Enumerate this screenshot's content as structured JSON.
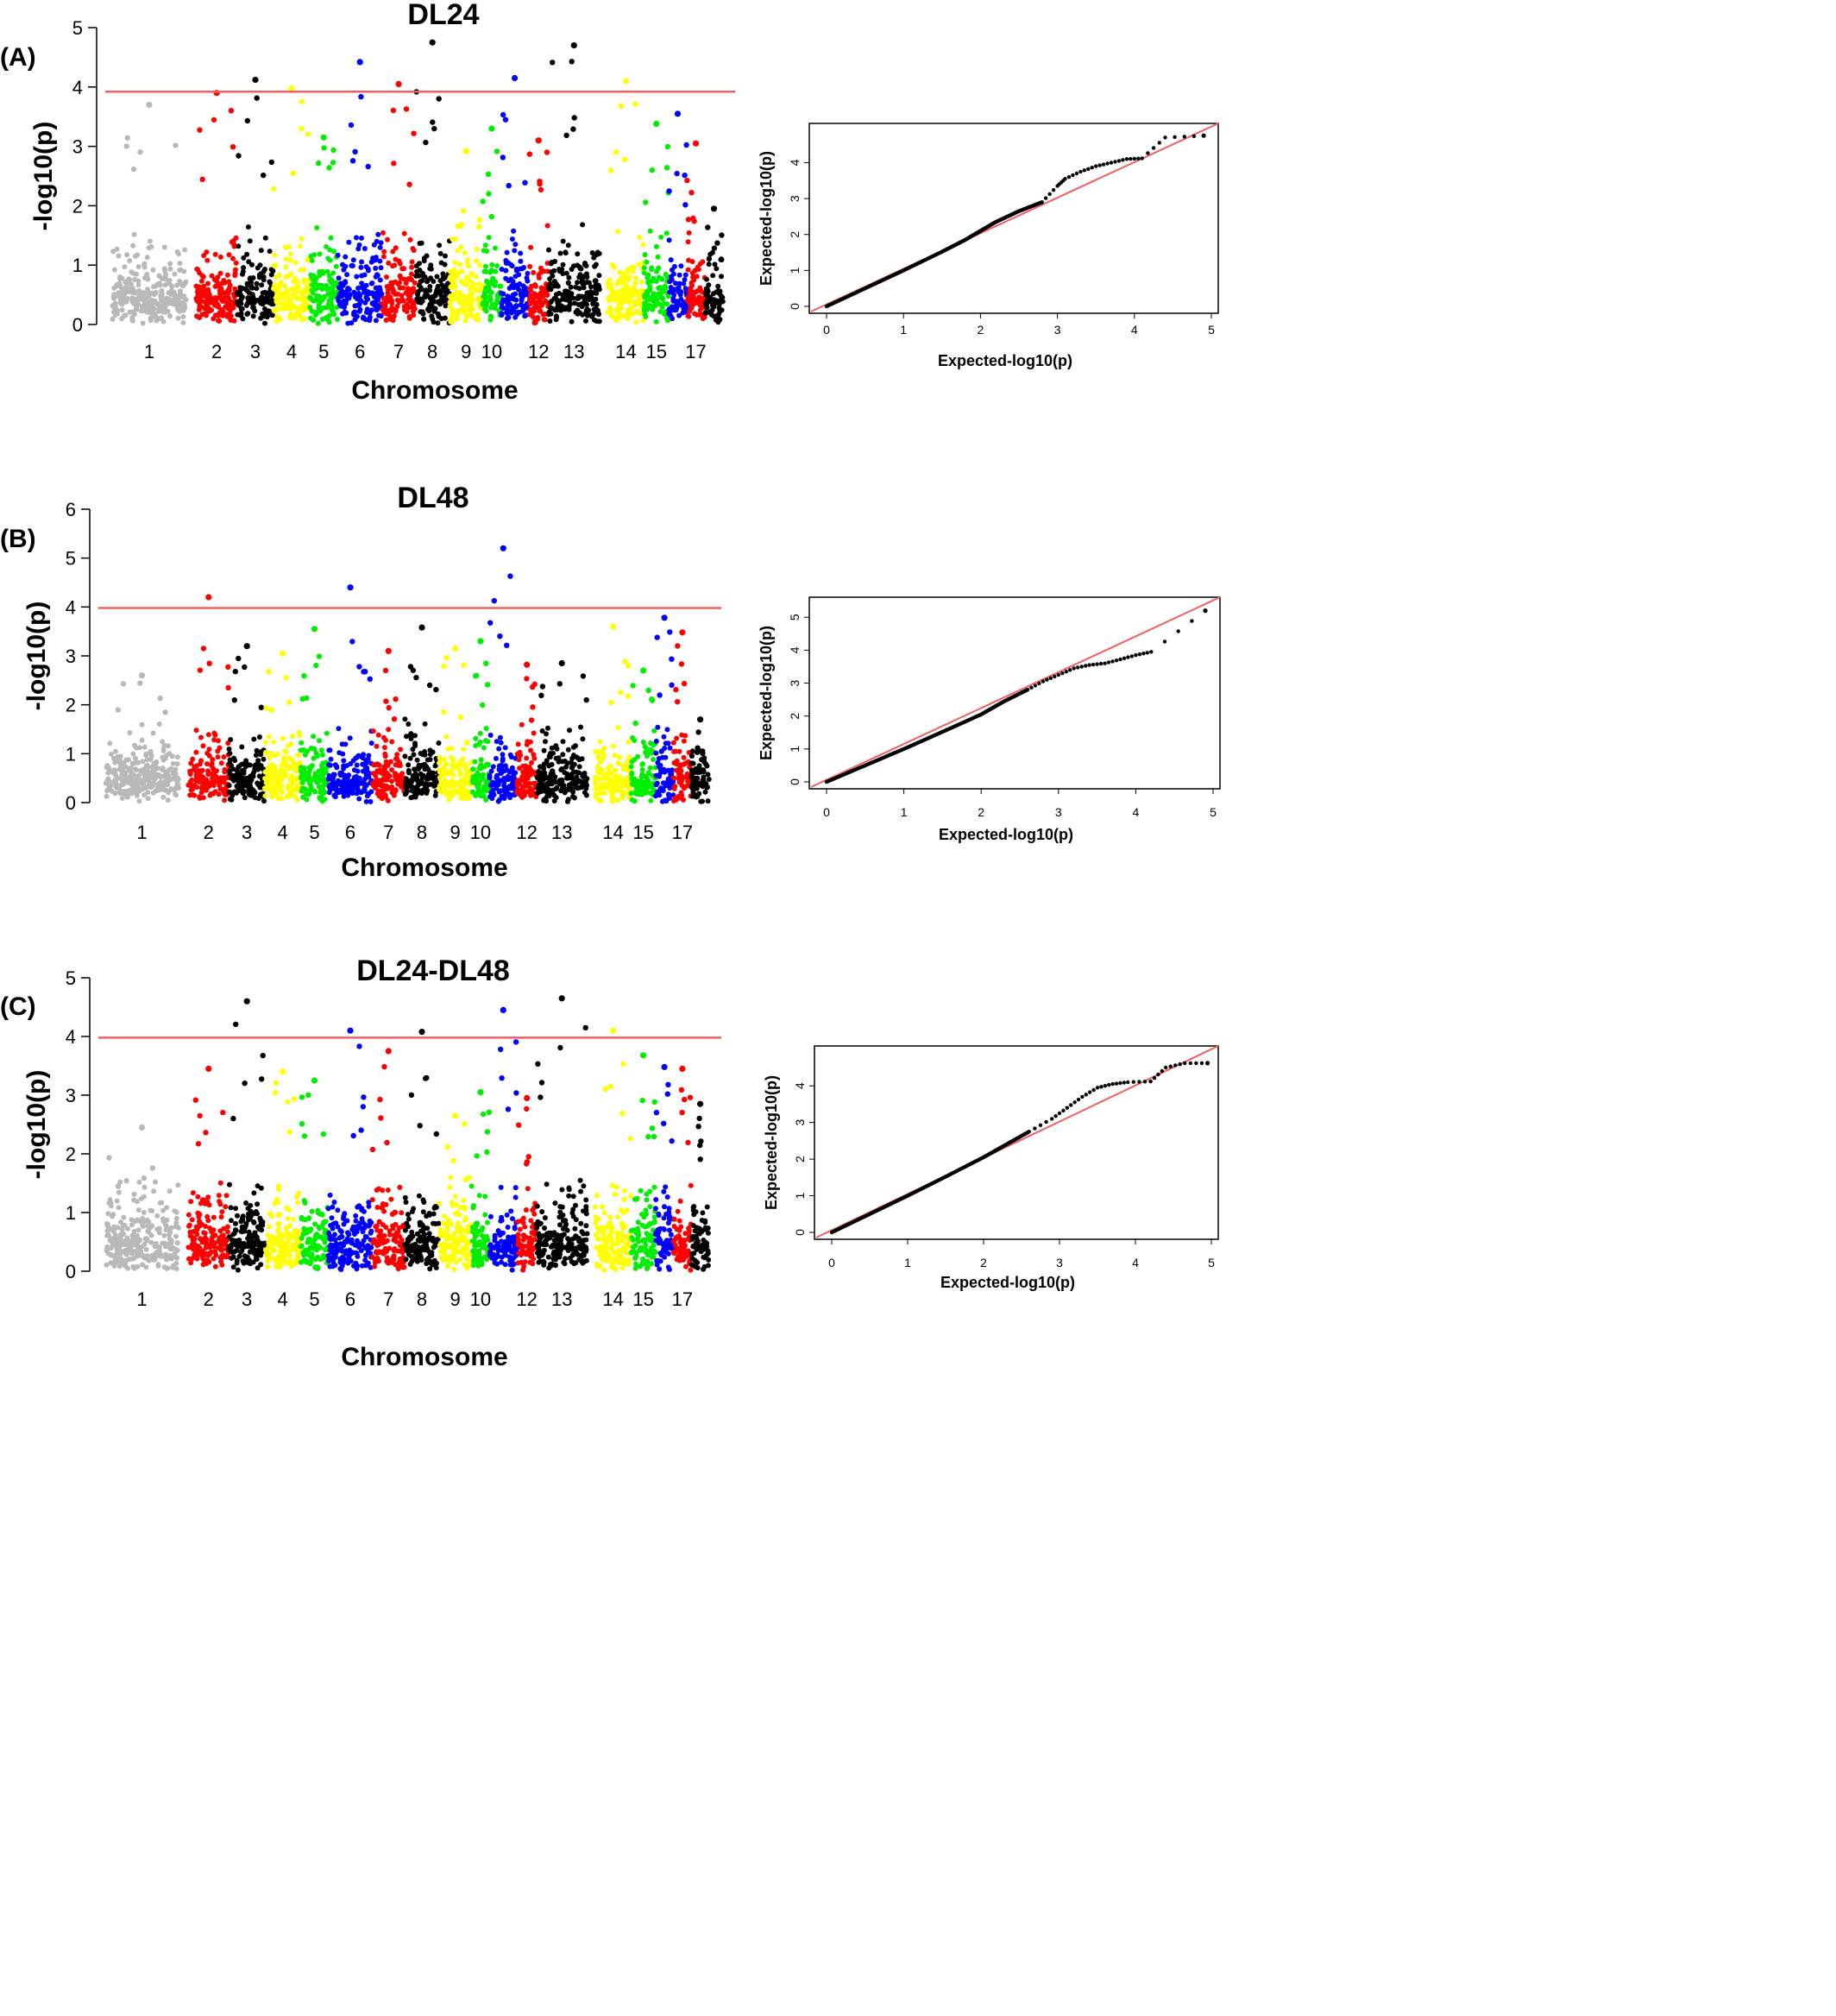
{
  "colors": {
    "chromosome_cycle": [
      "#b9b9b9",
      "#ff0000",
      "#000000",
      "#ffff00",
      "#00ee00",
      "#0000ff"
    ],
    "threshold_line": "#f06060",
    "qq_line": "#f06060",
    "qq_points": "#000000"
  },
  "panels": [
    {
      "label": "(A)",
      "title": "DL24",
      "manhattan": {
        "type": "scatter",
        "ylabel": "-log10(p)",
        "xlabel": "Chromosome",
        "ylim": [
          0,
          5
        ],
        "yticks": [
          "0",
          "1",
          "2",
          "3",
          "4",
          "5"
        ],
        "xticks": [
          "1",
          "2",
          "3",
          "4",
          "5",
          "6",
          "7",
          "8",
          "9",
          "10",
          "12",
          "13",
          "14",
          "15",
          "17"
        ],
        "threshold": 3.92,
        "top_hits": [
          {
            "chr": "1",
            "value": 3.7
          },
          {
            "chr": "2",
            "value": 3.9
          },
          {
            "chr": "3",
            "value": 4.12
          },
          {
            "chr": "4",
            "value": 3.98
          },
          {
            "chr": "5",
            "value": 3.15
          },
          {
            "chr": "6",
            "value": 4.42
          },
          {
            "chr": "7",
            "value": 4.05
          },
          {
            "chr": "8",
            "value": 4.75
          },
          {
            "chr": "9",
            "value": 2.92
          },
          {
            "chr": "10",
            "value": 3.3
          },
          {
            "chr": "11",
            "value": 4.15
          },
          {
            "chr": "12",
            "value": 3.1
          },
          {
            "chr": "13",
            "value": 4.7
          },
          {
            "chr": "14",
            "value": 4.1
          },
          {
            "chr": "15",
            "value": 3.38
          },
          {
            "chr": "16",
            "value": 3.55
          },
          {
            "chr": "17",
            "value": 3.05
          },
          {
            "chr": "18",
            "value": 1.95
          }
        ]
      },
      "qq": {
        "type": "scatter",
        "xlabel": "Expected-log10(p)",
        "ylabel": "Expected-log10(p)",
        "xticks": [
          "0",
          "1",
          "2",
          "3",
          "4",
          "5"
        ],
        "yticks": [
          "0",
          "1",
          "2",
          "3",
          "4"
        ],
        "xlim": [
          0,
          5
        ],
        "ylim": [
          0,
          4.9
        ],
        "points": [
          [
            0,
            0
          ],
          [
            0.5,
            0.5
          ],
          [
            1,
            1
          ],
          [
            1.5,
            1.52
          ],
          [
            1.8,
            1.85
          ],
          [
            2,
            2.1
          ],
          [
            2.2,
            2.35
          ],
          [
            2.5,
            2.65
          ],
          [
            2.8,
            2.9
          ],
          [
            3.0,
            3.35
          ],
          [
            3.1,
            3.55
          ],
          [
            3.3,
            3.75
          ],
          [
            3.5,
            3.9
          ],
          [
            3.7,
            4.0
          ],
          [
            3.9,
            4.1
          ],
          [
            4.1,
            4.12
          ],
          [
            4.4,
            4.7
          ],
          [
            4.9,
            4.75
          ]
        ]
      }
    },
    {
      "label": "(B)",
      "title": "DL48",
      "manhattan": {
        "type": "scatter",
        "ylabel": "-log10(p)",
        "xlabel": "Chromosome",
        "ylim": [
          0,
          6
        ],
        "yticks": [
          "0",
          "1",
          "2",
          "3",
          "4",
          "5",
          "6"
        ],
        "xticks": [
          "1",
          "2",
          "3",
          "4",
          "5",
          "6",
          "7",
          "8",
          "9",
          "10",
          "12",
          "13",
          "14",
          "15",
          "17"
        ],
        "threshold": 3.98,
        "top_hits": [
          {
            "chr": "1",
            "value": 2.6
          },
          {
            "chr": "2",
            "value": 4.2
          },
          {
            "chr": "3",
            "value": 3.2
          },
          {
            "chr": "4",
            "value": 3.05
          },
          {
            "chr": "5",
            "value": 3.55
          },
          {
            "chr": "6",
            "value": 4.4
          },
          {
            "chr": "7",
            "value": 3.1
          },
          {
            "chr": "8",
            "value": 3.58
          },
          {
            "chr": "9",
            "value": 3.15
          },
          {
            "chr": "10",
            "value": 3.3
          },
          {
            "chr": "11",
            "value": 5.2
          },
          {
            "chr": "12",
            "value": 2.82
          },
          {
            "chr": "13",
            "value": 2.85
          },
          {
            "chr": "14",
            "value": 3.6
          },
          {
            "chr": "15",
            "value": 2.7
          },
          {
            "chr": "16",
            "value": 3.78
          },
          {
            "chr": "17",
            "value": 3.48
          },
          {
            "chr": "18",
            "value": 1.7
          }
        ]
      },
      "qq": {
        "type": "scatter",
        "xlabel": "Expected-log10(p)",
        "ylabel": "Expected-log10(p)",
        "xticks": [
          "0",
          "1",
          "2",
          "3",
          "4",
          "5"
        ],
        "yticks": [
          "0",
          "1",
          "2",
          "3",
          "4",
          "5"
        ],
        "xlim": [
          0,
          5
        ],
        "ylim": [
          0,
          5.4
        ],
        "points": [
          [
            0,
            0
          ],
          [
            0.5,
            0.5
          ],
          [
            1,
            1
          ],
          [
            1.5,
            1.52
          ],
          [
            2,
            2.05
          ],
          [
            2.3,
            2.45
          ],
          [
            2.6,
            2.8
          ],
          [
            2.8,
            3.05
          ],
          [
            3.0,
            3.25
          ],
          [
            3.2,
            3.45
          ],
          [
            3.4,
            3.55
          ],
          [
            3.6,
            3.6
          ],
          [
            3.8,
            3.72
          ],
          [
            4.0,
            3.85
          ],
          [
            4.2,
            3.95
          ],
          [
            4.9,
            5.2
          ]
        ]
      }
    },
    {
      "label": "(C)",
      "title": "DL24-DL48",
      "manhattan": {
        "type": "scatter",
        "ylabel": "-log10(p)",
        "xlabel": "Chromosome",
        "ylim": [
          0,
          5
        ],
        "yticks": [
          "0",
          "1",
          "2",
          "3",
          "4",
          "5"
        ],
        "xticks": [
          "1",
          "2",
          "3",
          "4",
          "5",
          "6",
          "7",
          "8",
          "9",
          "10",
          "12",
          "13",
          "14",
          "15",
          "17"
        ],
        "threshold": 3.98,
        "top_hits": [
          {
            "chr": "1",
            "value": 2.45
          },
          {
            "chr": "2",
            "value": 3.45
          },
          {
            "chr": "3",
            "value": 4.6
          },
          {
            "chr": "4",
            "value": 3.4
          },
          {
            "chr": "5",
            "value": 3.25
          },
          {
            "chr": "6",
            "value": 4.1
          },
          {
            "chr": "7",
            "value": 3.75
          },
          {
            "chr": "8",
            "value": 4.08
          },
          {
            "chr": "9",
            "value": 2.65
          },
          {
            "chr": "10",
            "value": 3.05
          },
          {
            "chr": "11",
            "value": 4.45
          },
          {
            "chr": "12",
            "value": 2.95
          },
          {
            "chr": "13",
            "value": 4.65
          },
          {
            "chr": "14",
            "value": 4.1
          },
          {
            "chr": "15",
            "value": 3.68
          },
          {
            "chr": "16",
            "value": 3.48
          },
          {
            "chr": "17",
            "value": 3.45
          },
          {
            "chr": "18",
            "value": 2.85
          }
        ]
      },
      "qq": {
        "type": "scatter",
        "xlabel": "Expected-log10(p)",
        "ylabel": "Expected-log10(p)",
        "xticks": [
          "0",
          "1",
          "2",
          "3",
          "4",
          "5"
        ],
        "yticks": [
          "0",
          "1",
          "2",
          "3",
          "4"
        ],
        "xlim": [
          0,
          5
        ],
        "ylim": [
          0,
          4.9
        ],
        "points": [
          [
            0,
            0
          ],
          [
            0.5,
            0.5
          ],
          [
            1,
            1
          ],
          [
            1.5,
            1.52
          ],
          [
            2,
            2.05
          ],
          [
            2.3,
            2.4
          ],
          [
            2.6,
            2.75
          ],
          [
            2.9,
            3.1
          ],
          [
            3.1,
            3.4
          ],
          [
            3.3,
            3.7
          ],
          [
            3.5,
            3.95
          ],
          [
            3.7,
            4.05
          ],
          [
            3.9,
            4.1
          ],
          [
            4.2,
            4.12
          ],
          [
            4.4,
            4.5
          ],
          [
            4.65,
            4.62
          ],
          [
            4.95,
            4.62
          ]
        ]
      }
    }
  ]
}
